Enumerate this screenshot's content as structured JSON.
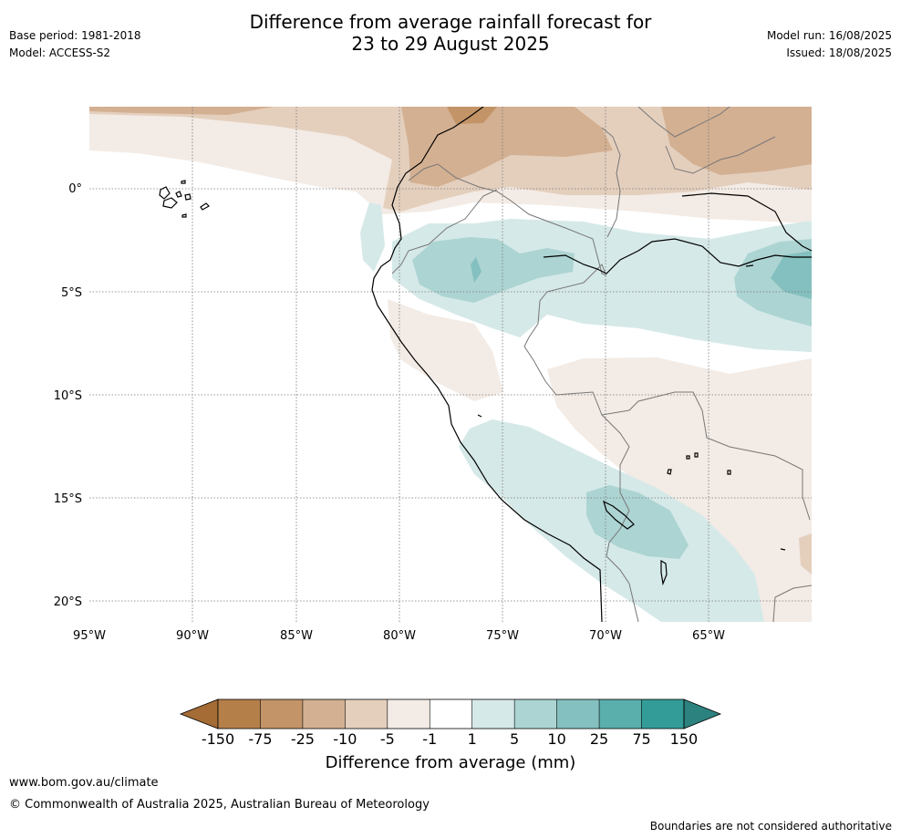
{
  "header": {
    "base_period": "Base period: 1981-2018",
    "model": "Model: ACCESS-S2",
    "title_line1": "Difference from average rainfall forecast for",
    "title_line2": "23 to 29 August 2025",
    "model_run": "Model run: 16/08/2025",
    "issued": "Issued: 18/08/2025"
  },
  "map": {
    "lon_ticks": [
      "95°W",
      "90°W",
      "85°W",
      "80°W",
      "75°W",
      "70°W",
      "65°W"
    ],
    "lat_ticks": [
      "0°",
      "5°S",
      "10°S",
      "15°S",
      "20°S"
    ]
  },
  "colorbar": {
    "tick_labels": [
      "-150",
      "-75",
      "-25",
      "-10",
      "-5",
      "-1",
      "1",
      "5",
      "10",
      "25",
      "75",
      "150"
    ],
    "colors": [
      "#a56c35",
      "#b57f4a",
      "#c39467",
      "#d3b092",
      "#e4cfbd",
      "#f3ebe5",
      "#ffffff",
      "#d5e9e8",
      "#acd4d3",
      "#84c0bf",
      "#5aaeab",
      "#339c98",
      "#2b827e"
    ],
    "title": "Difference from average (mm)"
  },
  "footer": {
    "website": "www.bom.gov.au/climate",
    "copyright": "© Commonwealth of Australia 2025, Australian Bureau of Meteorology",
    "disclaimer": "Boundaries are not considered authoritative"
  }
}
